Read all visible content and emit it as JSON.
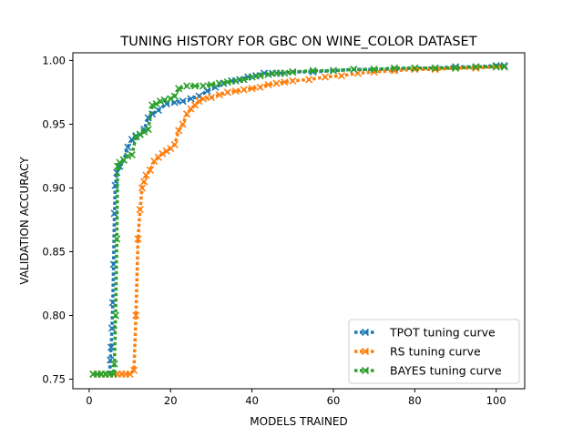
{
  "chart_data": {
    "type": "line",
    "title": "TUNING HISTORY FOR GBC ON WINE_COLOR DATASET",
    "xlabel": "MODELS TRAINED",
    "ylabel": "VALIDATION ACCURACY",
    "xlim": [
      -4,
      107
    ],
    "ylim": [
      0.7425,
      1.006
    ],
    "xticks": [
      0,
      20,
      40,
      60,
      80,
      100
    ],
    "xtick_labels": [
      "0",
      "20",
      "40",
      "60",
      "80",
      "100"
    ],
    "yticks": [
      0.75,
      0.8,
      0.85,
      0.9,
      0.95,
      1.0
    ],
    "ytick_labels": [
      "0.75",
      "0.80",
      "0.85",
      "0.90",
      "0.95",
      "1.00"
    ],
    "grid": false,
    "legend_position": "lower-right",
    "series": [
      {
        "name": "TPOT tuning curve",
        "color": "#1f77b4",
        "line_style": "dotted",
        "marker": "x",
        "points": [
          [
            1,
            0.754
          ],
          [
            2,
            0.754
          ],
          [
            3,
            0.754
          ],
          [
            4,
            0.754
          ],
          [
            5,
            0.754
          ],
          [
            5.2,
            0.765
          ],
          [
            5.4,
            0.775
          ],
          [
            5.6,
            0.79
          ],
          [
            5.8,
            0.81
          ],
          [
            6,
            0.84
          ],
          [
            6.2,
            0.88
          ],
          [
            6.4,
            0.902
          ],
          [
            6.8,
            0.912
          ],
          [
            7.5,
            0.917
          ],
          [
            8.5,
            0.922
          ],
          [
            9.5,
            0.932
          ],
          [
            10.5,
            0.938
          ],
          [
            11.5,
            0.941
          ],
          [
            12.5,
            0.942
          ],
          [
            13.5,
            0.946
          ],
          [
            14.5,
            0.955
          ],
          [
            15.5,
            0.958
          ],
          [
            17,
            0.961
          ],
          [
            19,
            0.966
          ],
          [
            21,
            0.967
          ],
          [
            23,
            0.968
          ],
          [
            25,
            0.97
          ],
          [
            27,
            0.972
          ],
          [
            29,
            0.976
          ],
          [
            31,
            0.979
          ],
          [
            33,
            0.982
          ],
          [
            35,
            0.984
          ],
          [
            37,
            0.985
          ],
          [
            39,
            0.987
          ],
          [
            41,
            0.988
          ],
          [
            43,
            0.99
          ],
          [
            45,
            0.99
          ],
          [
            47,
            0.99
          ],
          [
            50,
            0.991
          ],
          [
            55,
            0.991
          ],
          [
            60,
            0.992
          ],
          [
            65,
            0.993
          ],
          [
            70,
            0.993
          ],
          [
            75,
            0.993
          ],
          [
            80,
            0.994
          ],
          [
            85,
            0.994
          ],
          [
            90,
            0.995
          ],
          [
            95,
            0.995
          ],
          [
            100,
            0.996
          ],
          [
            102,
            0.996
          ]
        ]
      },
      {
        "name": "RS tuning curve",
        "color": "#ff7f0e",
        "line_style": "dotted",
        "marker": "x",
        "points": [
          [
            1,
            0.754
          ],
          [
            2,
            0.754
          ],
          [
            3,
            0.754
          ],
          [
            4,
            0.754
          ],
          [
            5,
            0.754
          ],
          [
            6,
            0.754
          ],
          [
            7,
            0.754
          ],
          [
            8,
            0.754
          ],
          [
            9,
            0.754
          ],
          [
            10,
            0.754
          ],
          [
            11,
            0.757
          ],
          [
            11.5,
            0.8
          ],
          [
            12,
            0.86
          ],
          [
            12.5,
            0.883
          ],
          [
            13,
            0.9
          ],
          [
            13.5,
            0.905
          ],
          [
            14,
            0.91
          ],
          [
            15,
            0.914
          ],
          [
            16,
            0.921
          ],
          [
            17,
            0.924
          ],
          [
            18,
            0.927
          ],
          [
            19,
            0.929
          ],
          [
            20,
            0.931
          ],
          [
            21,
            0.934
          ],
          [
            22,
            0.945
          ],
          [
            23,
            0.95
          ],
          [
            24,
            0.958
          ],
          [
            25,
            0.962
          ],
          [
            26,
            0.965
          ],
          [
            27,
            0.968
          ],
          [
            28,
            0.97
          ],
          [
            30,
            0.971
          ],
          [
            32,
            0.973
          ],
          [
            34,
            0.975
          ],
          [
            36,
            0.976
          ],
          [
            38,
            0.977
          ],
          [
            40,
            0.978
          ],
          [
            42,
            0.979
          ],
          [
            44,
            0.981
          ],
          [
            46,
            0.982
          ],
          [
            48,
            0.983
          ],
          [
            50,
            0.984
          ],
          [
            54,
            0.985
          ],
          [
            58,
            0.987
          ],
          [
            62,
            0.988
          ],
          [
            66,
            0.99
          ],
          [
            70,
            0.991
          ],
          [
            75,
            0.992
          ],
          [
            80,
            0.993
          ],
          [
            85,
            0.993
          ],
          [
            90,
            0.994
          ],
          [
            95,
            0.994
          ],
          [
            100,
            0.995
          ],
          [
            102,
            0.995
          ]
        ]
      },
      {
        "name": "BAYES tuning curve",
        "color": "#2ca02c",
        "line_style": "dotted",
        "marker": "x",
        "points": [
          [
            1,
            0.754
          ],
          [
            2,
            0.754
          ],
          [
            3,
            0.754
          ],
          [
            4,
            0.754
          ],
          [
            5,
            0.754
          ],
          [
            6,
            0.754
          ],
          [
            6.2,
            0.762
          ],
          [
            6.5,
            0.8
          ],
          [
            6.8,
            0.86
          ],
          [
            7,
            0.917
          ],
          [
            7.5,
            0.92
          ],
          [
            8.5,
            0.922
          ],
          [
            9.5,
            0.925
          ],
          [
            10.5,
            0.926
          ],
          [
            11.5,
            0.94
          ],
          [
            12.5,
            0.942
          ],
          [
            13.5,
            0.944
          ],
          [
            14.5,
            0.946
          ],
          [
            15.5,
            0.965
          ],
          [
            16.5,
            0.966
          ],
          [
            17.5,
            0.968
          ],
          [
            18.5,
            0.969
          ],
          [
            20,
            0.97
          ],
          [
            21,
            0.972
          ],
          [
            22,
            0.978
          ],
          [
            24,
            0.98
          ],
          [
            26,
            0.98
          ],
          [
            28,
            0.98
          ],
          [
            30,
            0.981
          ],
          [
            32,
            0.982
          ],
          [
            34,
            0.983
          ],
          [
            36,
            0.984
          ],
          [
            38,
            0.985
          ],
          [
            40,
            0.987
          ],
          [
            42,
            0.988
          ],
          [
            44,
            0.989
          ],
          [
            46,
            0.99
          ],
          [
            48,
            0.99
          ],
          [
            50,
            0.991
          ],
          [
            55,
            0.992
          ],
          [
            60,
            0.992
          ],
          [
            65,
            0.993
          ],
          [
            70,
            0.993
          ],
          [
            75,
            0.994
          ],
          [
            80,
            0.994
          ],
          [
            85,
            0.994
          ],
          [
            90,
            0.994
          ],
          [
            95,
            0.995
          ],
          [
            100,
            0.995
          ],
          [
            102,
            0.995
          ]
        ]
      }
    ]
  }
}
